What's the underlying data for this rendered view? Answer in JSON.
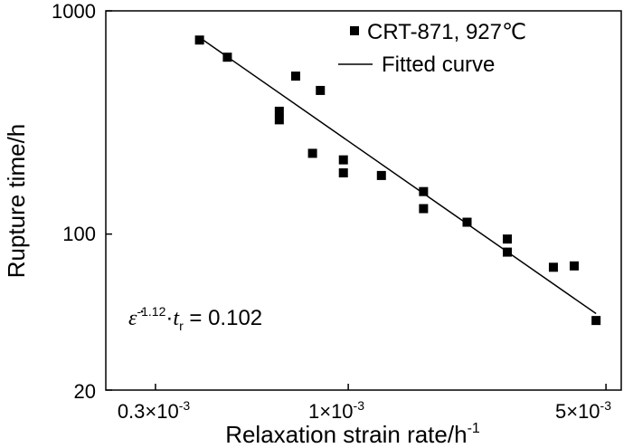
{
  "chart_data": {
    "type": "scatter",
    "title": "",
    "xlabel": "Relaxation strain rate/h",
    "xlabel_sup": "-1",
    "ylabel": "Rupture time/h",
    "xscale": "log",
    "yscale": "log",
    "xlim": [
      0.00022,
      0.0055
    ],
    "ylim": [
      20,
      1000
    ],
    "x_ticks": [
      {
        "value": 0.0003,
        "label": "0.3×10",
        "sup": "-3"
      },
      {
        "value": 0.001,
        "label": "1×10",
        "sup": "-3"
      },
      {
        "value": 0.005,
        "label": "5×10",
        "sup": "-3"
      }
    ],
    "y_ticks": [
      {
        "value": 20,
        "label": "20"
      },
      {
        "value": 100,
        "label": "100"
      },
      {
        "value": 1000,
        "label": "1000"
      }
    ],
    "legend_position": "top-right",
    "series": [
      {
        "name": "CRT-871, 927℃",
        "kind": "scatter",
        "marker": "square",
        "color": "#000000",
        "points": [
          {
            "x": 0.000395,
            "y": 740
          },
          {
            "x": 0.00047,
            "y": 620
          },
          {
            "x": 0.00065,
            "y": 355
          },
          {
            "x": 0.00065,
            "y": 325
          },
          {
            "x": 0.00072,
            "y": 510
          },
          {
            "x": 0.0008,
            "y": 230
          },
          {
            "x": 0.00084,
            "y": 440
          },
          {
            "x": 0.00097,
            "y": 215
          },
          {
            "x": 0.00097,
            "y": 188
          },
          {
            "x": 0.00123,
            "y": 183
          },
          {
            "x": 0.0016,
            "y": 155
          },
          {
            "x": 0.0016,
            "y": 130
          },
          {
            "x": 0.0021,
            "y": 113
          },
          {
            "x": 0.0027,
            "y": 95
          },
          {
            "x": 0.0027,
            "y": 83
          },
          {
            "x": 0.0036,
            "y": 71
          },
          {
            "x": 0.0041,
            "y": 72
          },
          {
            "x": 0.0047,
            "y": 41
          }
        ]
      },
      {
        "name": "Fitted curve",
        "kind": "line",
        "color": "#000000",
        "points": [
          {
            "x": 0.000395,
            "y": 760
          },
          {
            "x": 0.0047,
            "y": 44
          }
        ]
      }
    ],
    "annotation": {
      "epsilon": "ε̇",
      "exponent": "-1.12",
      "dot": "·",
      "t": "t",
      "t_sub": "r",
      "value_text": " = 0.102"
    }
  }
}
